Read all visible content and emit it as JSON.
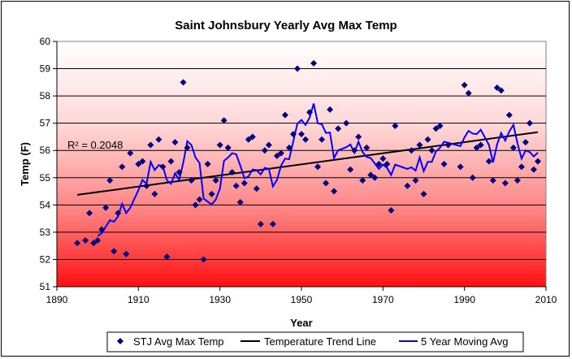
{
  "chart_data": {
    "type": "scatter",
    "title": "Saint Johnsbury Yearly Avg Max Temp",
    "xlabel": "Year",
    "ylabel": "Temp (F)",
    "xlim": [
      1890,
      2010
    ],
    "ylim": [
      51,
      60
    ],
    "xticks": [
      1890,
      1910,
      1930,
      1950,
      1970,
      1990,
      2010
    ],
    "yticks": [
      51,
      52,
      53,
      54,
      55,
      56,
      57,
      58,
      59,
      60
    ],
    "grid": "horizontal",
    "background": "gradient white to red",
    "annotation": "R² = 0.2048",
    "legend_placement": "bottom",
    "series": [
      {
        "name": "STJ Avg Max Temp",
        "kind": "points",
        "color": "#000080",
        "x": [
          1895,
          1897,
          1898,
          1899,
          1900,
          1901,
          1902,
          1903,
          1904,
          1905,
          1906,
          1907,
          1908,
          1910,
          1911,
          1912,
          1913,
          1914,
          1915,
          1916,
          1917,
          1918,
          1919,
          1920,
          1921,
          1922,
          1923,
          1924,
          1925,
          1926,
          1927,
          1928,
          1929,
          1930,
          1931,
          1932,
          1933,
          1934,
          1935,
          1936,
          1937,
          1938,
          1939,
          1940,
          1941,
          1942,
          1943,
          1944,
          1945,
          1946,
          1947,
          1948,
          1949,
          1950,
          1951,
          1952,
          1953,
          1954,
          1955,
          1956,
          1957,
          1958,
          1959,
          1961,
          1962,
          1963,
          1964,
          1965,
          1966,
          1967,
          1968,
          1969,
          1970,
          1971,
          1972,
          1973,
          1976,
          1977,
          1978,
          1979,
          1980,
          1981,
          1982,
          1983,
          1984,
          1985,
          1986,
          1989,
          1990,
          1991,
          1992,
          1993,
          1994,
          1996,
          1997,
          1998,
          1999,
          2000,
          2001,
          2002,
          2003,
          2004,
          2005,
          2006,
          2007,
          2008
        ],
        "y": [
          52.6,
          52.7,
          53.7,
          52.6,
          52.7,
          53.1,
          53.9,
          54.9,
          52.3,
          53.7,
          55.4,
          52.2,
          55.9,
          55.5,
          55.6,
          54.7,
          56.2,
          54.4,
          56.4,
          55.4,
          52.1,
          55.6,
          56.3,
          55.2,
          58.5,
          56.1,
          54.9,
          54.0,
          54.2,
          52.0,
          55.5,
          54.4,
          54.9,
          56.2,
          57.1,
          56.1,
          55.2,
          54.7,
          54.1,
          54.8,
          56.4,
          56.5,
          54.6,
          53.3,
          56.0,
          56.2,
          53.3,
          55.8,
          55.9,
          57.3,
          56.1,
          56.6,
          59.0,
          56.6,
          56.4,
          57.4,
          59.2,
          55.4,
          56.4,
          54.8,
          57.5,
          54.5,
          56.8,
          57.0,
          55.3,
          56.0,
          56.5,
          54.9,
          56.1,
          55.1,
          55.0,
          55.5,
          55.7,
          55.5,
          53.8,
          56.9,
          54.7,
          56.0,
          54.9,
          56.2,
          54.4,
          56.4,
          56.0,
          56.8,
          56.9,
          55.5,
          56.2,
          55.4,
          58.4,
          58.1,
          55.0,
          56.1,
          56.2,
          55.6,
          54.9,
          58.3,
          58.2,
          54.8,
          57.3,
          56.1,
          54.9,
          55.4,
          56.3,
          57.0,
          55.3,
          55.6
        ]
      },
      {
        "name": "Temperature Trend Line",
        "kind": "line",
        "color": "#000000",
        "x": [
          1895,
          2008
        ],
        "y": [
          54.37,
          56.67
        ]
      },
      {
        "name": "5 Year Moving Avg",
        "kind": "moving-average",
        "period": 5,
        "color": "#0000FF"
      }
    ]
  }
}
